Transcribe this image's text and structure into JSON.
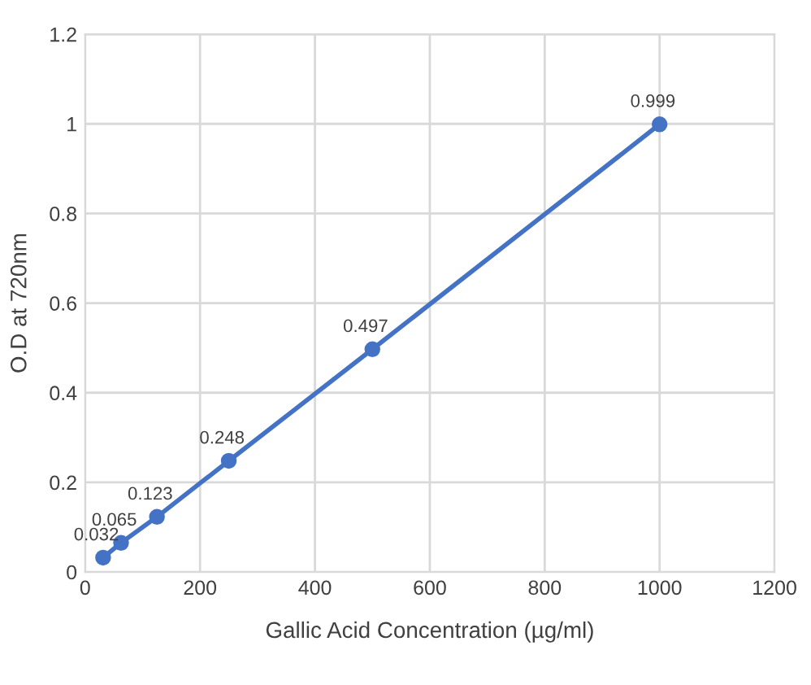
{
  "chart_data": {
    "type": "line",
    "xlabel": "Gallic Acid Concentration (µg/ml)",
    "ylabel": "O.D at 720nm",
    "x": [
      31.25,
      62.5,
      125,
      250,
      500,
      1000
    ],
    "series": [
      {
        "color": "#4472c4",
        "values": [
          0.032,
          0.065,
          0.123,
          0.248,
          0.497,
          0.999
        ]
      }
    ],
    "xlim": [
      0,
      1200
    ],
    "xticks": [
      0,
      200,
      400,
      600,
      800,
      1000,
      1200
    ],
    "ylim": [
      0,
      1.2
    ],
    "yticks": [
      0,
      0.2,
      0.4,
      0.6,
      0.8,
      1,
      1.2
    ],
    "grid": true,
    "marker": "circle",
    "line_style": "solid",
    "data_labels": true
  }
}
